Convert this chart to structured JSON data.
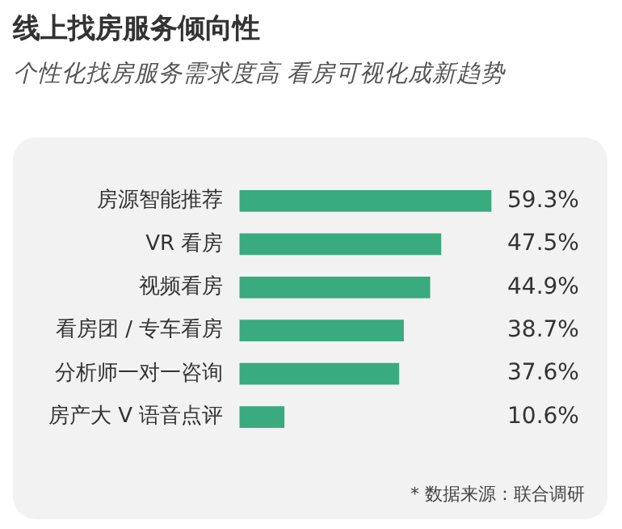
{
  "chart_data": {
    "type": "bar",
    "orientation": "horizontal",
    "title": "线上找房服务倾向性",
    "subtitle": "个性化找房服务需求度高 看房可视化成新趋势",
    "categories": [
      "房源智能推荐",
      "VR 看房",
      "视频看房",
      "看房团 / 专车看房",
      "分析师一对一咨询",
      "房产大 V 语音点评"
    ],
    "values": [
      59.3,
      47.5,
      44.9,
      38.7,
      37.6,
      10.6
    ],
    "value_labels": [
      "59.3%",
      "47.5%",
      "44.9%",
      "38.7%",
      "37.6%",
      "10.6%"
    ],
    "color": "#3aaa7f",
    "tick_labels": "y",
    "grid": false,
    "legend": false,
    "annotations": [
      "* 数据来源：联合调研"
    ]
  }
}
